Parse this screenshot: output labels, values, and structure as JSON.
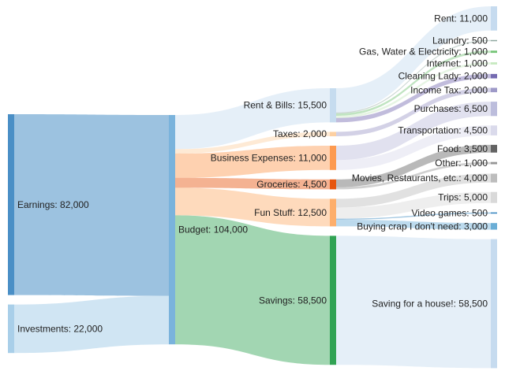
{
  "chart_data": {
    "type": "sankey",
    "nodes": [
      {
        "id": "earnings",
        "name": "Earnings",
        "value": 82000,
        "column": 0,
        "color": "#4a8fc6"
      },
      {
        "id": "investments",
        "name": "Investments",
        "value": 22000,
        "column": 0,
        "color": "#a9cfe9"
      },
      {
        "id": "budget",
        "name": "Budget",
        "value": 104000,
        "column": 1,
        "color": "#7ab3dc"
      },
      {
        "id": "rent_bills",
        "name": "Rent & Bills",
        "value": 15500,
        "column": 2,
        "color": "#c6dcef"
      },
      {
        "id": "taxes",
        "name": "Taxes",
        "value": 2000,
        "column": 2,
        "color": "#fdd0a2"
      },
      {
        "id": "business",
        "name": "Business Expenses",
        "value": 11000,
        "column": 2,
        "color": "#fd9a50"
      },
      {
        "id": "groceries",
        "name": "Groceries",
        "value": 4500,
        "column": 2,
        "color": "#e6550d"
      },
      {
        "id": "fun",
        "name": "Fun Stuff",
        "value": 12500,
        "column": 2,
        "color": "#fdae6b"
      },
      {
        "id": "savings",
        "name": "Savings",
        "value": 58500,
        "column": 2,
        "color": "#31a354"
      },
      {
        "id": "rent",
        "name": "Rent",
        "value": 11000,
        "column": 3,
        "color": "#c6dbef"
      },
      {
        "id": "laundry",
        "name": "Laundry",
        "value": 500,
        "column": 3,
        "color": "#8fa8a0"
      },
      {
        "id": "gas",
        "name": "Gas, Water & Electricity",
        "value": 1000,
        "column": 3,
        "color": "#74c476"
      },
      {
        "id": "internet",
        "name": "Internet",
        "value": 1000,
        "column": 3,
        "color": "#c7e9c0"
      },
      {
        "id": "cleaning",
        "name": "Cleaning Lady",
        "value": 2000,
        "column": 3,
        "color": "#756bb1"
      },
      {
        "id": "income_tax",
        "name": "Income Tax",
        "value": 2000,
        "column": 3,
        "color": "#9e9ac8"
      },
      {
        "id": "purchases",
        "name": "Purchases",
        "value": 6500,
        "column": 3,
        "color": "#bcbddc"
      },
      {
        "id": "transportation",
        "name": "Transportation",
        "value": 4500,
        "column": 3,
        "color": "#dadaeb"
      },
      {
        "id": "food",
        "name": "Food",
        "value": 3500,
        "column": 3,
        "color": "#636363"
      },
      {
        "id": "other",
        "name": "Other",
        "value": 1000,
        "column": 3,
        "color": "#969696"
      },
      {
        "id": "movies",
        "name": "Movies, Restaurants, etc.",
        "value": 4000,
        "column": 3,
        "color": "#bdbdbd"
      },
      {
        "id": "trips",
        "name": "Trips",
        "value": 5000,
        "column": 3,
        "color": "#d9d9d9"
      },
      {
        "id": "video_games",
        "name": "Video games",
        "value": 500,
        "column": 3,
        "color": "#3182bd"
      },
      {
        "id": "crap",
        "name": "Buying crap I don't need",
        "value": 3000,
        "column": 3,
        "color": "#6baed6"
      },
      {
        "id": "house",
        "name": "Saving for a house!",
        "value": 58500,
        "column": 3,
        "color": "#c6dbef"
      }
    ],
    "links": [
      {
        "source": "earnings",
        "target": "budget",
        "value": 82000
      },
      {
        "source": "investments",
        "target": "budget",
        "value": 22000
      },
      {
        "source": "budget",
        "target": "rent_bills",
        "value": 15500
      },
      {
        "source": "budget",
        "target": "taxes",
        "value": 2000
      },
      {
        "source": "budget",
        "target": "business",
        "value": 11000
      },
      {
        "source": "budget",
        "target": "groceries",
        "value": 4500
      },
      {
        "source": "budget",
        "target": "fun",
        "value": 12500
      },
      {
        "source": "budget",
        "target": "savings",
        "value": 58500
      },
      {
        "source": "rent_bills",
        "target": "rent",
        "value": 11000
      },
      {
        "source": "rent_bills",
        "target": "laundry",
        "value": 500
      },
      {
        "source": "rent_bills",
        "target": "gas",
        "value": 1000
      },
      {
        "source": "rent_bills",
        "target": "internet",
        "value": 1000
      },
      {
        "source": "rent_bills",
        "target": "cleaning",
        "value": 2000
      },
      {
        "source": "taxes",
        "target": "income_tax",
        "value": 2000
      },
      {
        "source": "business",
        "target": "purchases",
        "value": 6500
      },
      {
        "source": "business",
        "target": "transportation",
        "value": 4500
      },
      {
        "source": "groceries",
        "target": "food",
        "value": 3500
      },
      {
        "source": "groceries",
        "target": "other",
        "value": 1000
      },
      {
        "source": "fun",
        "target": "movies",
        "value": 4000
      },
      {
        "source": "fun",
        "target": "trips",
        "value": 5000
      },
      {
        "source": "fun",
        "target": "video_games",
        "value": 500
      },
      {
        "source": "fun",
        "target": "crap",
        "value": 3000
      },
      {
        "source": "savings",
        "target": "house",
        "value": 58500
      }
    ]
  }
}
